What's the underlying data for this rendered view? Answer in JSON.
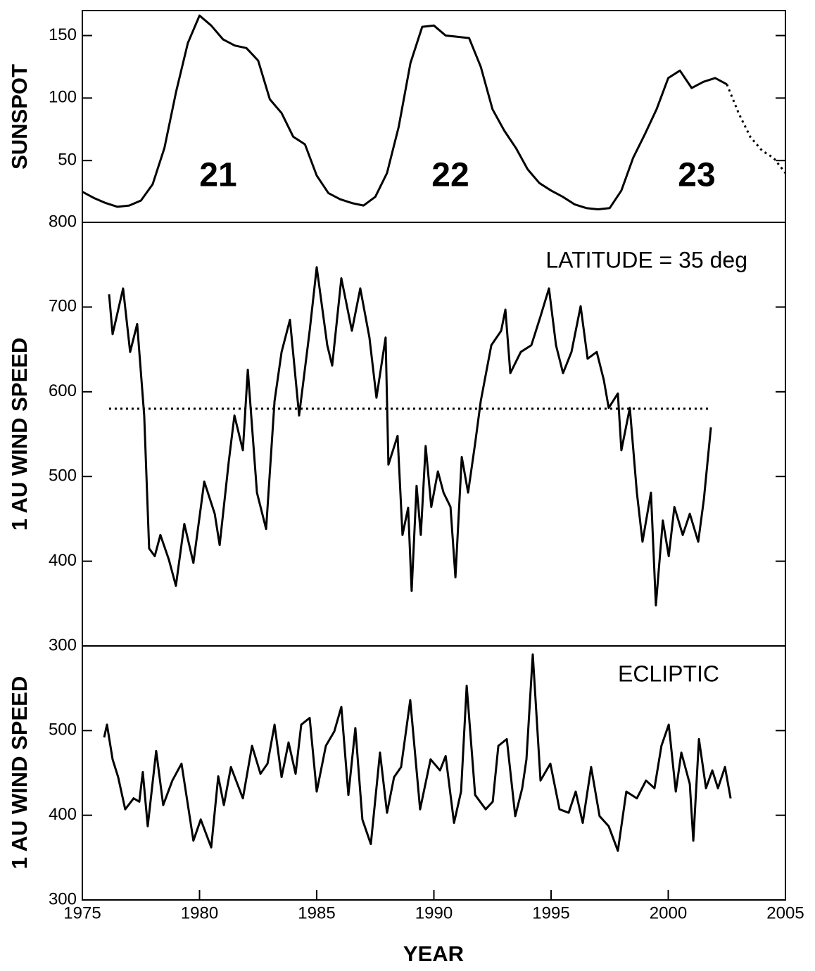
{
  "chart_data": [
    {
      "type": "line",
      "ylabel": "SUNSPOT",
      "annotations": [
        "21",
        "22",
        "23"
      ],
      "xlim": [
        1975,
        2005
      ],
      "ylim": [
        0,
        170
      ],
      "yticks": [
        50,
        100,
        150
      ],
      "x": [
        1975,
        1975.5,
        1976,
        1976.5,
        1977,
        1977.5,
        1978,
        1978.5,
        1979,
        1979.5,
        1980,
        1980.5,
        1981,
        1981.5,
        1982,
        1982.5,
        1983,
        1983.5,
        1984,
        1984.5,
        1985,
        1985.5,
        1986,
        1986.5,
        1987,
        1987.5,
        1988,
        1988.5,
        1989,
        1989.5,
        1990,
        1990.5,
        1991,
        1991.5,
        1992,
        1992.5,
        1993,
        1993.5,
        1994,
        1994.5,
        1995,
        1995.5,
        1996,
        1996.5,
        1997,
        1997.5,
        1998,
        1998.5,
        1999,
        1999.5,
        2000,
        2000.5,
        2001,
        2001.5,
        2002,
        2002.5,
        2003,
        2003.5,
        2004,
        2004.5,
        2005
      ],
      "series": [
        {
          "color": "#000000",
          "dash": false,
          "values": [
            25,
            20,
            16,
            13,
            14,
            18,
            31,
            60,
            105,
            144,
            166,
            158,
            147,
            142,
            140,
            130,
            99,
            88,
            69,
            63,
            38,
            24,
            19,
            16,
            14,
            21,
            40,
            77,
            128,
            157,
            158,
            150,
            149,
            148,
            125,
            91,
            74,
            60,
            43,
            32,
            26,
            21,
            15,
            12,
            11,
            12,
            26,
            52,
            71,
            91,
            116,
            122,
            108,
            113,
            116,
            111,
            null,
            null,
            null,
            null,
            null
          ]
        },
        {
          "color": "#000000",
          "dash": true,
          "values": [
            null,
            null,
            null,
            null,
            null,
            null,
            null,
            null,
            null,
            null,
            null,
            null,
            null,
            null,
            null,
            null,
            null,
            null,
            null,
            null,
            null,
            null,
            null,
            null,
            null,
            null,
            null,
            null,
            null,
            null,
            null,
            null,
            null,
            null,
            null,
            null,
            null,
            null,
            null,
            null,
            null,
            null,
            null,
            null,
            null,
            null,
            null,
            null,
            null,
            null,
            null,
            null,
            null,
            null,
            null,
            111,
            88,
            69,
            58,
            52,
            40
          ]
        }
      ]
    },
    {
      "type": "line",
      "ylabel": "1 AU WIND SPEED",
      "annotation": "LATITUDE = 35 deg",
      "xlim": [
        1975,
        2005
      ],
      "ylim": [
        300,
        800
      ],
      "yticks": [
        300,
        400,
        500,
        600,
        700,
        800
      ],
      "hline": 580,
      "x": [
        1976.14,
        1976.29,
        1976.74,
        1977.04,
        1977.34,
        1977.64,
        1977.85,
        1978.09,
        1978.33,
        1978.69,
        1978.99,
        1979.35,
        1979.74,
        1980.2,
        1980.65,
        1980.86,
        1981.25,
        1981.49,
        1981.85,
        1982.06,
        1982.45,
        1982.84,
        1983.2,
        1983.5,
        1983.86,
        1984.25,
        1984.7,
        1985.0,
        1985.45,
        1985.66,
        1986.05,
        1986.5,
        1986.86,
        1987.25,
        1987.55,
        1987.94,
        1988.06,
        1988.45,
        1988.66,
        1988.9,
        1989.05,
        1989.26,
        1989.44,
        1989.65,
        1989.89,
        1990.17,
        1990.41,
        1990.71,
        1990.92,
        1991.19,
        1991.46,
        1991.76,
        1992.0,
        1992.45,
        1992.87,
        1993.05,
        1993.26,
        1993.71,
        1994.16,
        1994.55,
        1994.91,
        1995.21,
        1995.51,
        1995.87,
        1996.26,
        1996.56,
        1996.95,
        1997.25,
        1997.46,
        1997.85,
        1998.0,
        1998.36,
        1998.66,
        1998.9,
        1999.26,
        1999.47,
        1999.77,
        2000.02,
        2000.26,
        2000.62,
        2000.92,
        2001.28,
        2001.52,
        2001.82
      ],
      "series": [
        {
          "color": "#000000",
          "dash": false,
          "values": [
            715,
            668,
            722,
            647,
            680,
            572,
            415,
            406,
            431,
            402,
            371,
            444,
            398,
            494,
            456,
            419,
            518,
            572,
            531,
            626,
            481,
            438,
            589,
            647,
            685,
            572,
            672,
            747,
            655,
            631,
            734,
            672,
            722,
            664,
            593,
            664,
            514,
            548,
            431,
            463,
            365,
            489,
            431,
            536,
            464,
            506,
            481,
            464,
            381,
            523,
            481,
            539,
            589,
            655,
            672,
            697,
            622,
            647,
            655,
            689,
            722,
            655,
            622,
            647,
            701,
            639,
            647,
            614,
            581,
            598,
            531,
            581,
            481,
            423,
            481,
            348,
            448,
            406,
            464,
            431,
            456,
            423,
            473,
            558
          ]
        }
      ]
    },
    {
      "type": "line",
      "ylabel": "1 AU WIND SPEED",
      "annotation": "ECLIPTIC",
      "xlabel": "YEAR",
      "xlim": [
        1975,
        2005
      ],
      "xticks": [
        1975,
        1980,
        1985,
        1990,
        1995,
        2000,
        2005
      ],
      "ylim": [
        300,
        600
      ],
      "yticks": [
        300,
        400,
        500
      ],
      "x": [
        1975.93,
        1976.05,
        1976.29,
        1976.53,
        1976.83,
        1977.19,
        1977.43,
        1977.58,
        1977.79,
        1978.15,
        1978.45,
        1978.84,
        1979.23,
        1979.74,
        1980.05,
        1980.5,
        1980.8,
        1981.04,
        1981.34,
        1981.85,
        1982.24,
        1982.6,
        1982.9,
        1983.2,
        1983.5,
        1983.8,
        1984.1,
        1984.34,
        1984.7,
        1985.0,
        1985.39,
        1985.75,
        1986.05,
        1986.35,
        1986.65,
        1986.95,
        1987.31,
        1987.7,
        1988.0,
        1988.3,
        1988.6,
        1988.99,
        1989.41,
        1989.86,
        1990.26,
        1990.5,
        1990.86,
        1991.16,
        1991.4,
        1991.76,
        1992.21,
        1992.51,
        1992.75,
        1993.11,
        1993.47,
        1993.77,
        1993.95,
        1994.22,
        1994.55,
        1994.97,
        1995.36,
        1995.75,
        1996.05,
        1996.35,
        1996.71,
        1997.07,
        1997.46,
        1997.85,
        1998.21,
        1998.66,
        1999.05,
        1999.41,
        1999.71,
        2000.02,
        2000.32,
        2000.56,
        2000.92,
        2001.07,
        2001.31,
        2001.61,
        2001.88,
        2002.12,
        2002.42,
        2002.66
      ],
      "series": [
        {
          "color": "#000000",
          "dash": false,
          "values": [
            492,
            507,
            466,
            445,
            407,
            420,
            416,
            451,
            387,
            476,
            412,
            441,
            461,
            370,
            395,
            362,
            446,
            412,
            457,
            420,
            482,
            449,
            461,
            507,
            445,
            486,
            449,
            507,
            515,
            428,
            482,
            499,
            528,
            424,
            503,
            395,
            366,
            474,
            403,
            445,
            457,
            536,
            407,
            466,
            453,
            470,
            391,
            428,
            553,
            424,
            407,
            416,
            482,
            490,
            399,
            432,
            466,
            590,
            441,
            461,
            407,
            403,
            428,
            391,
            457,
            399,
            387,
            358,
            428,
            420,
            441,
            432,
            482,
            507,
            428,
            474,
            437,
            370,
            490,
            432,
            453,
            432,
            457,
            420
          ]
        }
      ]
    }
  ]
}
